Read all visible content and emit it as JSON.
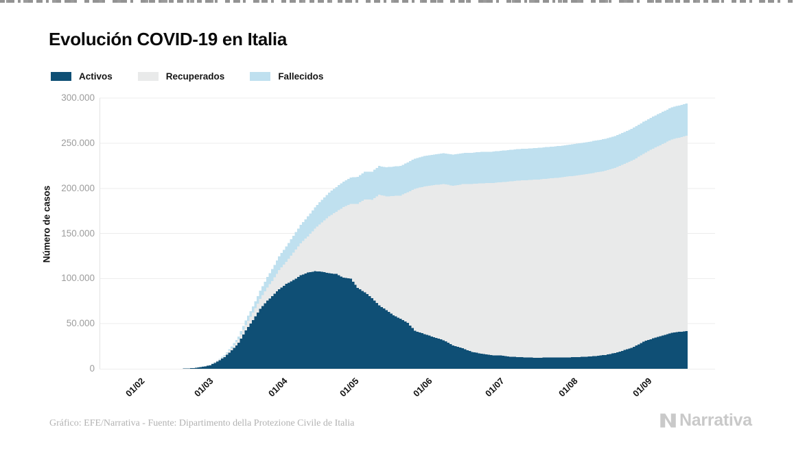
{
  "page": {
    "title": "Evolución COVID-19 en Italia",
    "source_note": "Gráfico: EFE/Narrativa - Fuente: Dipartimento della Protezione Civile de Italia",
    "brand": "Narrativa"
  },
  "legend": {
    "items": [
      {
        "label": "Activos",
        "color": "#0f4f75"
      },
      {
        "label": "Recuperados",
        "color": "#e9eaea"
      },
      {
        "label": "Fallecidos",
        "color": "#bfe0ef"
      }
    ]
  },
  "theme": {
    "grid_color": "#ececec",
    "axis_line_color": "#e3e3e3",
    "y_tick_text": "#9c9c9c",
    "x_tick_text": "#111111",
    "background": "#ffffff"
  },
  "chart_data": {
    "type": "bar",
    "stacked": true,
    "bar_unit": "one bar per day",
    "title": "Evolución COVID-19 en Italia",
    "xlabel": "",
    "ylabel": "Número de casos",
    "ylim": [
      0,
      300000
    ],
    "grid": "horizontal",
    "legend_position": "top-left",
    "y_ticks": [
      {
        "value": 0,
        "label": "0"
      },
      {
        "value": 50000,
        "label": "50.000"
      },
      {
        "value": 100000,
        "label": "100.000"
      },
      {
        "value": 150000,
        "label": "150.000"
      },
      {
        "value": 200000,
        "label": "200.000"
      },
      {
        "value": 250000,
        "label": "250.000"
      },
      {
        "value": 300000,
        "label": "300.000"
      }
    ],
    "x_ticks": [
      {
        "day": 12,
        "label": "01/02"
      },
      {
        "day": 41,
        "label": "01/03"
      },
      {
        "day": 72,
        "label": "01/04"
      },
      {
        "day": 102,
        "label": "01/05"
      },
      {
        "day": 133,
        "label": "01/06"
      },
      {
        "day": 163,
        "label": "01/07"
      },
      {
        "day": 194,
        "label": "01/08"
      },
      {
        "day": 225,
        "label": "01/09"
      }
    ],
    "x_domain_days": 247,
    "series_order_bottom_to_top": [
      "Activos",
      "Recuperados",
      "Fallecidos"
    ],
    "series": [
      {
        "name": "Activos",
        "color": "#0f4f75"
      },
      {
        "name": "Recuperados",
        "color": "#e9eaea"
      },
      {
        "name": "Fallecidos",
        "color": "#bfe0ef"
      }
    ],
    "keypoints": {
      "day": [
        11,
        32,
        36,
        40,
        43,
        46,
        49,
        52,
        55,
        58,
        61,
        64,
        67,
        70,
        72,
        75,
        78,
        81,
        84,
        87,
        90,
        93,
        96,
        99,
        102,
        105,
        108,
        111,
        114,
        117,
        120,
        123,
        126,
        129,
        132,
        136,
        140,
        144,
        148,
        152,
        156,
        160,
        164,
        168,
        172,
        176,
        180,
        184,
        188,
        192,
        196,
        200,
        204,
        208,
        212,
        216,
        220,
        224,
        228,
        232,
        236,
        240,
        243,
        246
      ],
      "Activos": [
        2,
        19,
        311,
        1049,
        2263,
        3916,
        7985,
        12839,
        20603,
        28710,
        42681,
        54030,
        66414,
        75528,
        80572,
        88274,
        94067,
        98273,
        103616,
        106607,
        108257,
        107699,
        105847,
        105205,
        100943,
        99980,
        89624,
        84842,
        78457,
        70187,
        65129,
        59322,
        55300,
        50966,
        42075,
        38429,
        34954,
        31710,
        25909,
        22702,
        18655,
        16836,
        15060,
        14642,
        13428,
        12919,
        12404,
        12248,
        12565,
        12616,
        12581,
        12924,
        13368,
        14249,
        15360,
        17503,
        20753,
        24205,
        30099,
        33789,
        36767,
        39712,
        40900,
        41800
      ],
      "Recuperados": [
        0,
        1,
        3,
        50,
        160,
        523,
        724,
        1258,
        2335,
        4025,
        6072,
        8326,
        10950,
        14620,
        16847,
        20996,
        24392,
        30455,
        35435,
        40164,
        47055,
        54543,
        63120,
        68941,
        78249,
        82879,
        93245,
        103031,
        109039,
        122810,
        126002,
        132282,
        136720,
        144658,
        157507,
        163781,
        168646,
        173085,
        177010,
        181907,
        186111,
        188891,
        190717,
        192108,
        194273,
        195806,
        196806,
        197628,
        198320,
        199031,
        200460,
        201323,
        202461,
        203326,
        204142,
        205203,
        206329,
        207653,
        208201,
        210238,
        212432,
        214645,
        215300,
        216400
      ],
      "Fallecidos": [
        0,
        1,
        11,
        29,
        79,
        197,
        463,
        1016,
        1809,
        2978,
        4825,
        6820,
        9134,
        11591,
        13155,
        15362,
        17127,
        18849,
        20465,
        22170,
        23660,
        25085,
        26384,
        27359,
        28236,
        29079,
        29958,
        30560,
        31106,
        31763,
        32169,
        32616,
        32877,
        33142,
        33415,
        33689,
        33964,
        34223,
        34448,
        34561,
        34678,
        34738,
        34788,
        34861,
        34938,
        34984,
        35028,
        35073,
        35107,
        35132,
        35158,
        35187,
        35215,
        35396,
        35412,
        35430,
        35458,
        35483,
        35518,
        35563,
        35597,
        35624,
        35690,
        35707
      ]
    }
  }
}
